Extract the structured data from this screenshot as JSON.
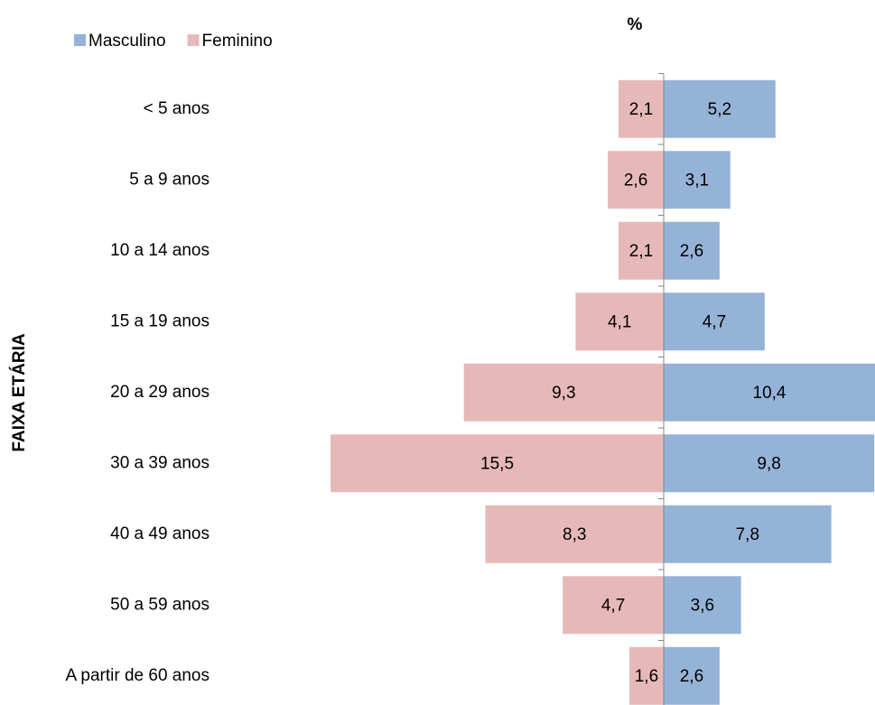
{
  "chart_data": {
    "type": "pyramid",
    "title": "%",
    "y_axis_label": "FAIXA ETÁRIA",
    "categories": [
      "< 5 anos",
      "5 a 9 anos",
      "10 a 14 anos",
      "15 a 19 anos",
      "20 a 29 anos",
      "30 a 39 anos",
      "40 a 49 anos",
      "50 a 59 anos",
      "A partir de 60 anos"
    ],
    "series": [
      {
        "name": "Masculino",
        "color": "#95b3d7",
        "side": "right",
        "values": [
          5.2,
          3.1,
          2.6,
          4.7,
          10.4,
          9.8,
          7.8,
          3.6,
          2.6
        ],
        "value_labels": [
          "5,2",
          "3,1",
          "2,6",
          "4,7",
          "10,4",
          "9,8",
          "7,8",
          "3,6",
          "2,6"
        ]
      },
      {
        "name": "Feminino",
        "color": "#e6b9b8",
        "side": "left",
        "values": [
          2.1,
          2.6,
          2.1,
          4.1,
          9.3,
          15.5,
          8.3,
          4.7,
          1.6
        ],
        "value_labels": [
          "2,1",
          "2,6",
          "2,1",
          "4,1",
          "9,3",
          "15,5",
          "8,3",
          "4,7",
          "1,6"
        ]
      }
    ],
    "legend": "top-left"
  }
}
